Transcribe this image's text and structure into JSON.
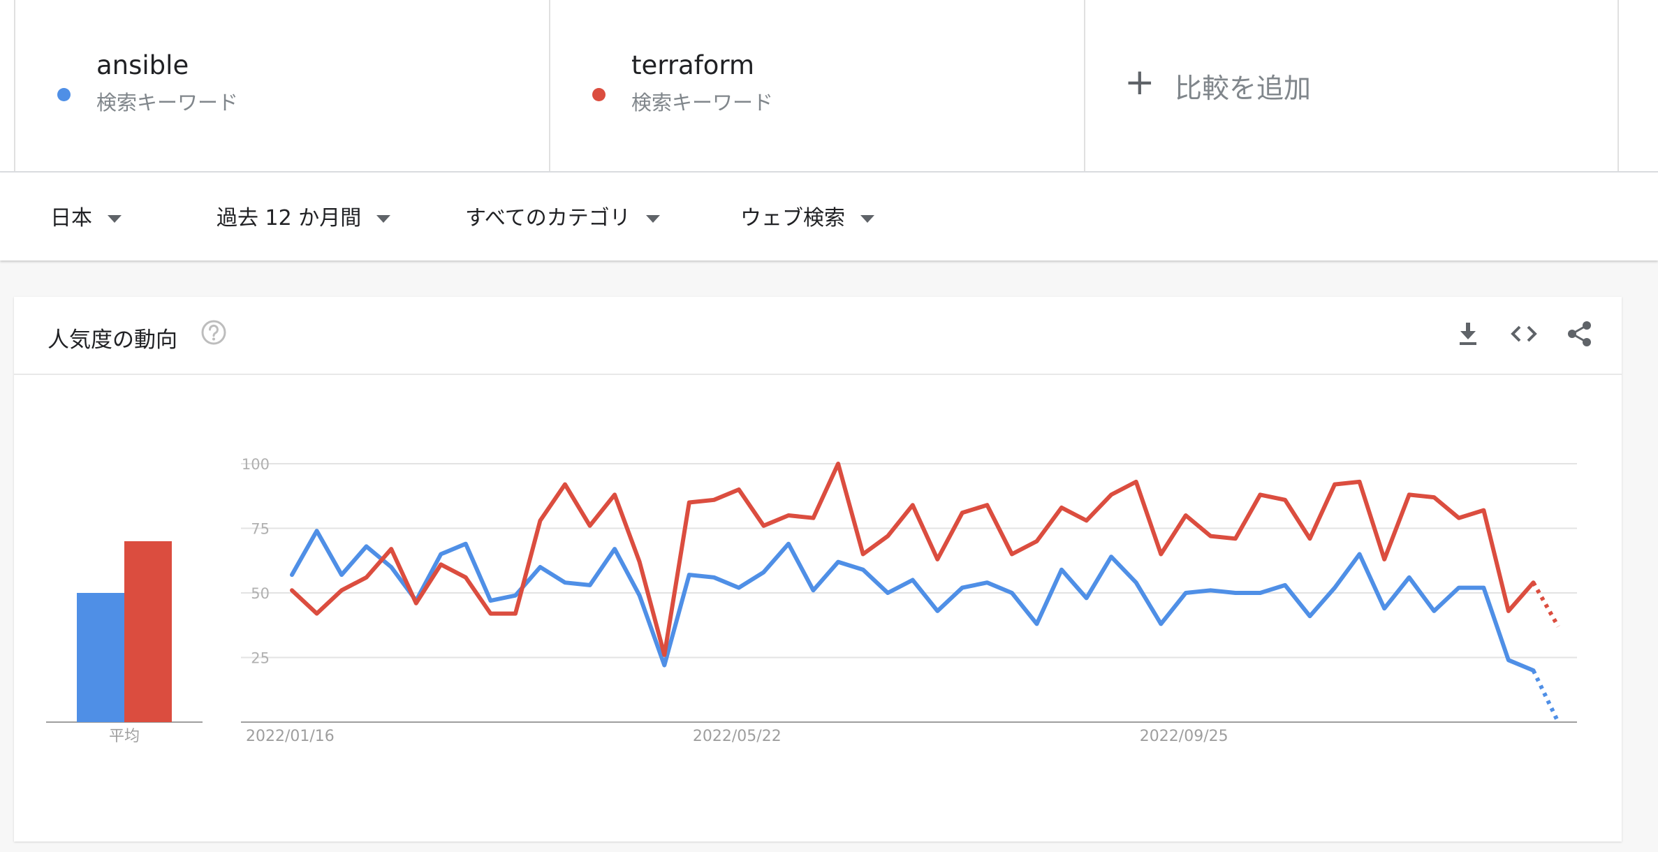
{
  "terms": [
    {
      "name": "ansible",
      "type": "検索キーワード",
      "color": "#4f8fe6"
    },
    {
      "name": "terraform",
      "type": "検索キーワード",
      "color": "#db4d3f"
    }
  ],
  "add_comparison": {
    "label": "比較を追加",
    "icon": "plus-icon"
  },
  "filters": {
    "region": "日本",
    "period": "過去 12 か月間",
    "category": "すべてのカテゴリ",
    "search_type": "ウェブ検索"
  },
  "card": {
    "title": "人気度の動向",
    "icons": [
      "help-icon",
      "download-icon",
      "embed-code-icon",
      "share-icon"
    ]
  },
  "chart_data": {
    "type": "line",
    "average_bar": {
      "label": "平均",
      "values": [
        {
          "name": "ansible",
          "value": 50
        },
        {
          "name": "terraform",
          "value": 70
        }
      ]
    },
    "ylim": [
      0,
      100
    ],
    "yticks": [
      100,
      75,
      50,
      25
    ],
    "xticks": [
      "2022/01/16",
      "2022/05/22",
      "2022/09/25"
    ],
    "grid": true,
    "series": [
      {
        "name": "ansible",
        "color": "#4f8fe6",
        "values": [
          57,
          74,
          57,
          68,
          60,
          47,
          65,
          69,
          47,
          49,
          60,
          54,
          53,
          67,
          49,
          22,
          57,
          56,
          52,
          58,
          69,
          51,
          62,
          59,
          50,
          55,
          43,
          52,
          54,
          50,
          38,
          59,
          48,
          64,
          54,
          38,
          50,
          51,
          50,
          50,
          53,
          41,
          52,
          65,
          44,
          56,
          43,
          52,
          52,
          24,
          20
        ],
        "partial": [
          20,
          0
        ]
      },
      {
        "name": "terraform",
        "color": "#db4d3f",
        "values": [
          51,
          42,
          51,
          56,
          67,
          46,
          61,
          56,
          42,
          42,
          78,
          92,
          76,
          88,
          62,
          26,
          85,
          86,
          90,
          76,
          80,
          79,
          100,
          65,
          72,
          84,
          63,
          81,
          84,
          65,
          70,
          83,
          78,
          88,
          93,
          65,
          80,
          72,
          71,
          88,
          86,
          71,
          92,
          93,
          63,
          88,
          87,
          79,
          82,
          43,
          54
        ],
        "partial": [
          54,
          37
        ]
      }
    ]
  }
}
